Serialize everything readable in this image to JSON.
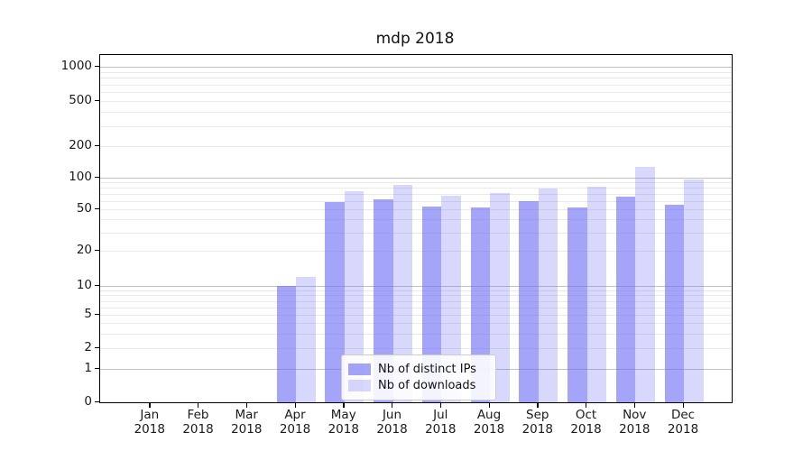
{
  "chart_data": {
    "type": "bar",
    "title": "mdp 2018",
    "categories": [
      "Jan 2018",
      "Feb 2018",
      "Mar 2018",
      "Apr 2018",
      "May 2018",
      "Jun 2018",
      "Jul 2018",
      "Aug 2018",
      "Sep 2018",
      "Oct 2018",
      "Nov 2018",
      "Dec 2018"
    ],
    "series": [
      {
        "name": "Nb of distinct IPs",
        "color": "rgba(103,103,243,0.60)",
        "hex_on_white": "#a6a6f8",
        "values": [
          0,
          0,
          0,
          10,
          59,
          62,
          53,
          52,
          60,
          52,
          66,
          55
        ]
      },
      {
        "name": "Nb of downloads",
        "color": "rgba(103,103,243,0.26)",
        "hex_on_white": "#d9d9fb",
        "values": [
          0,
          0,
          0,
          12,
          74,
          85,
          68,
          71,
          79,
          82,
          128,
          97
        ]
      }
    ],
    "yscale": "symlog",
    "yticks": [
      0,
      1,
      2,
      5,
      10,
      20,
      50,
      100,
      200,
      500,
      1000
    ],
    "major_gridline_values": [
      1,
      10,
      100,
      1000
    ],
    "minor_gridline_values": [
      3,
      4,
      6,
      7,
      8,
      9,
      30,
      40,
      60,
      70,
      80,
      90,
      300,
      400,
      600,
      700,
      800,
      900
    ],
    "ylim": [
      0,
      1300
    ],
    "xlabel": "",
    "ylabel": "",
    "grid": true,
    "legend_position": "inside-lower-center"
  },
  "colors": {
    "major_grid": "#c2c2c2",
    "minor_grid": "#e9e9e9",
    "axis": "#000000",
    "background": "#ffffff",
    "text": "#1a1a1a"
  }
}
